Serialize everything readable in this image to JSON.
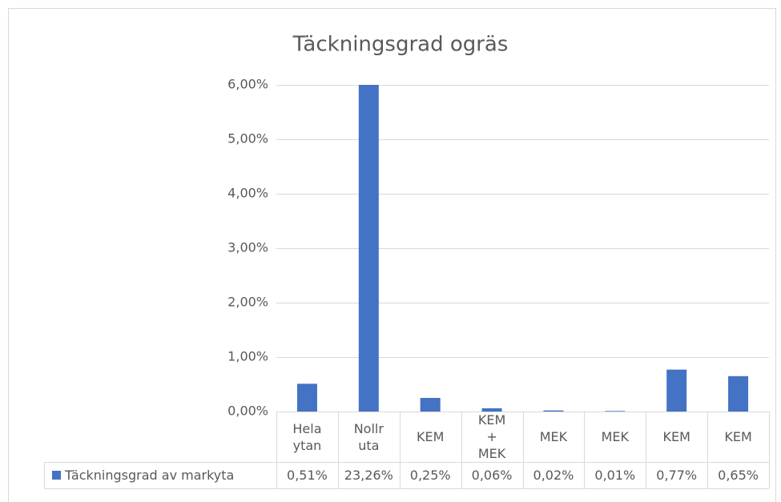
{
  "chart_data": {
    "type": "bar",
    "title": "Täckningsgrad ogräs",
    "categories": [
      "Hela ytan",
      "Nollruta",
      "KEM",
      "KEM+ MEK",
      "MEK",
      "MEK",
      "KEM",
      "KEM"
    ],
    "series": [
      {
        "name": "Täckningsgrad av markyta",
        "color": "#4472c4",
        "values": [
          0.51,
          23.26,
          0.25,
          0.06,
          0.02,
          0.01,
          0.77,
          0.65
        ],
        "value_labels": [
          "0,51%",
          "23,26%",
          "0,25%",
          "0,06%",
          "0,02%",
          "0,01%",
          "0,77%",
          "0,65%"
        ]
      }
    ],
    "ylim": [
      0,
      6
    ],
    "yticks": [
      {
        "value": 0,
        "label": "0,00%"
      },
      {
        "value": 1,
        "label": "1,00%"
      },
      {
        "value": 2,
        "label": "2,00%"
      },
      {
        "value": 3,
        "label": "3,00%"
      },
      {
        "value": 4,
        "label": "4,00%"
      },
      {
        "value": 5,
        "label": "5,00%"
      },
      {
        "value": 6,
        "label": "6,00%"
      }
    ],
    "grid": true
  }
}
